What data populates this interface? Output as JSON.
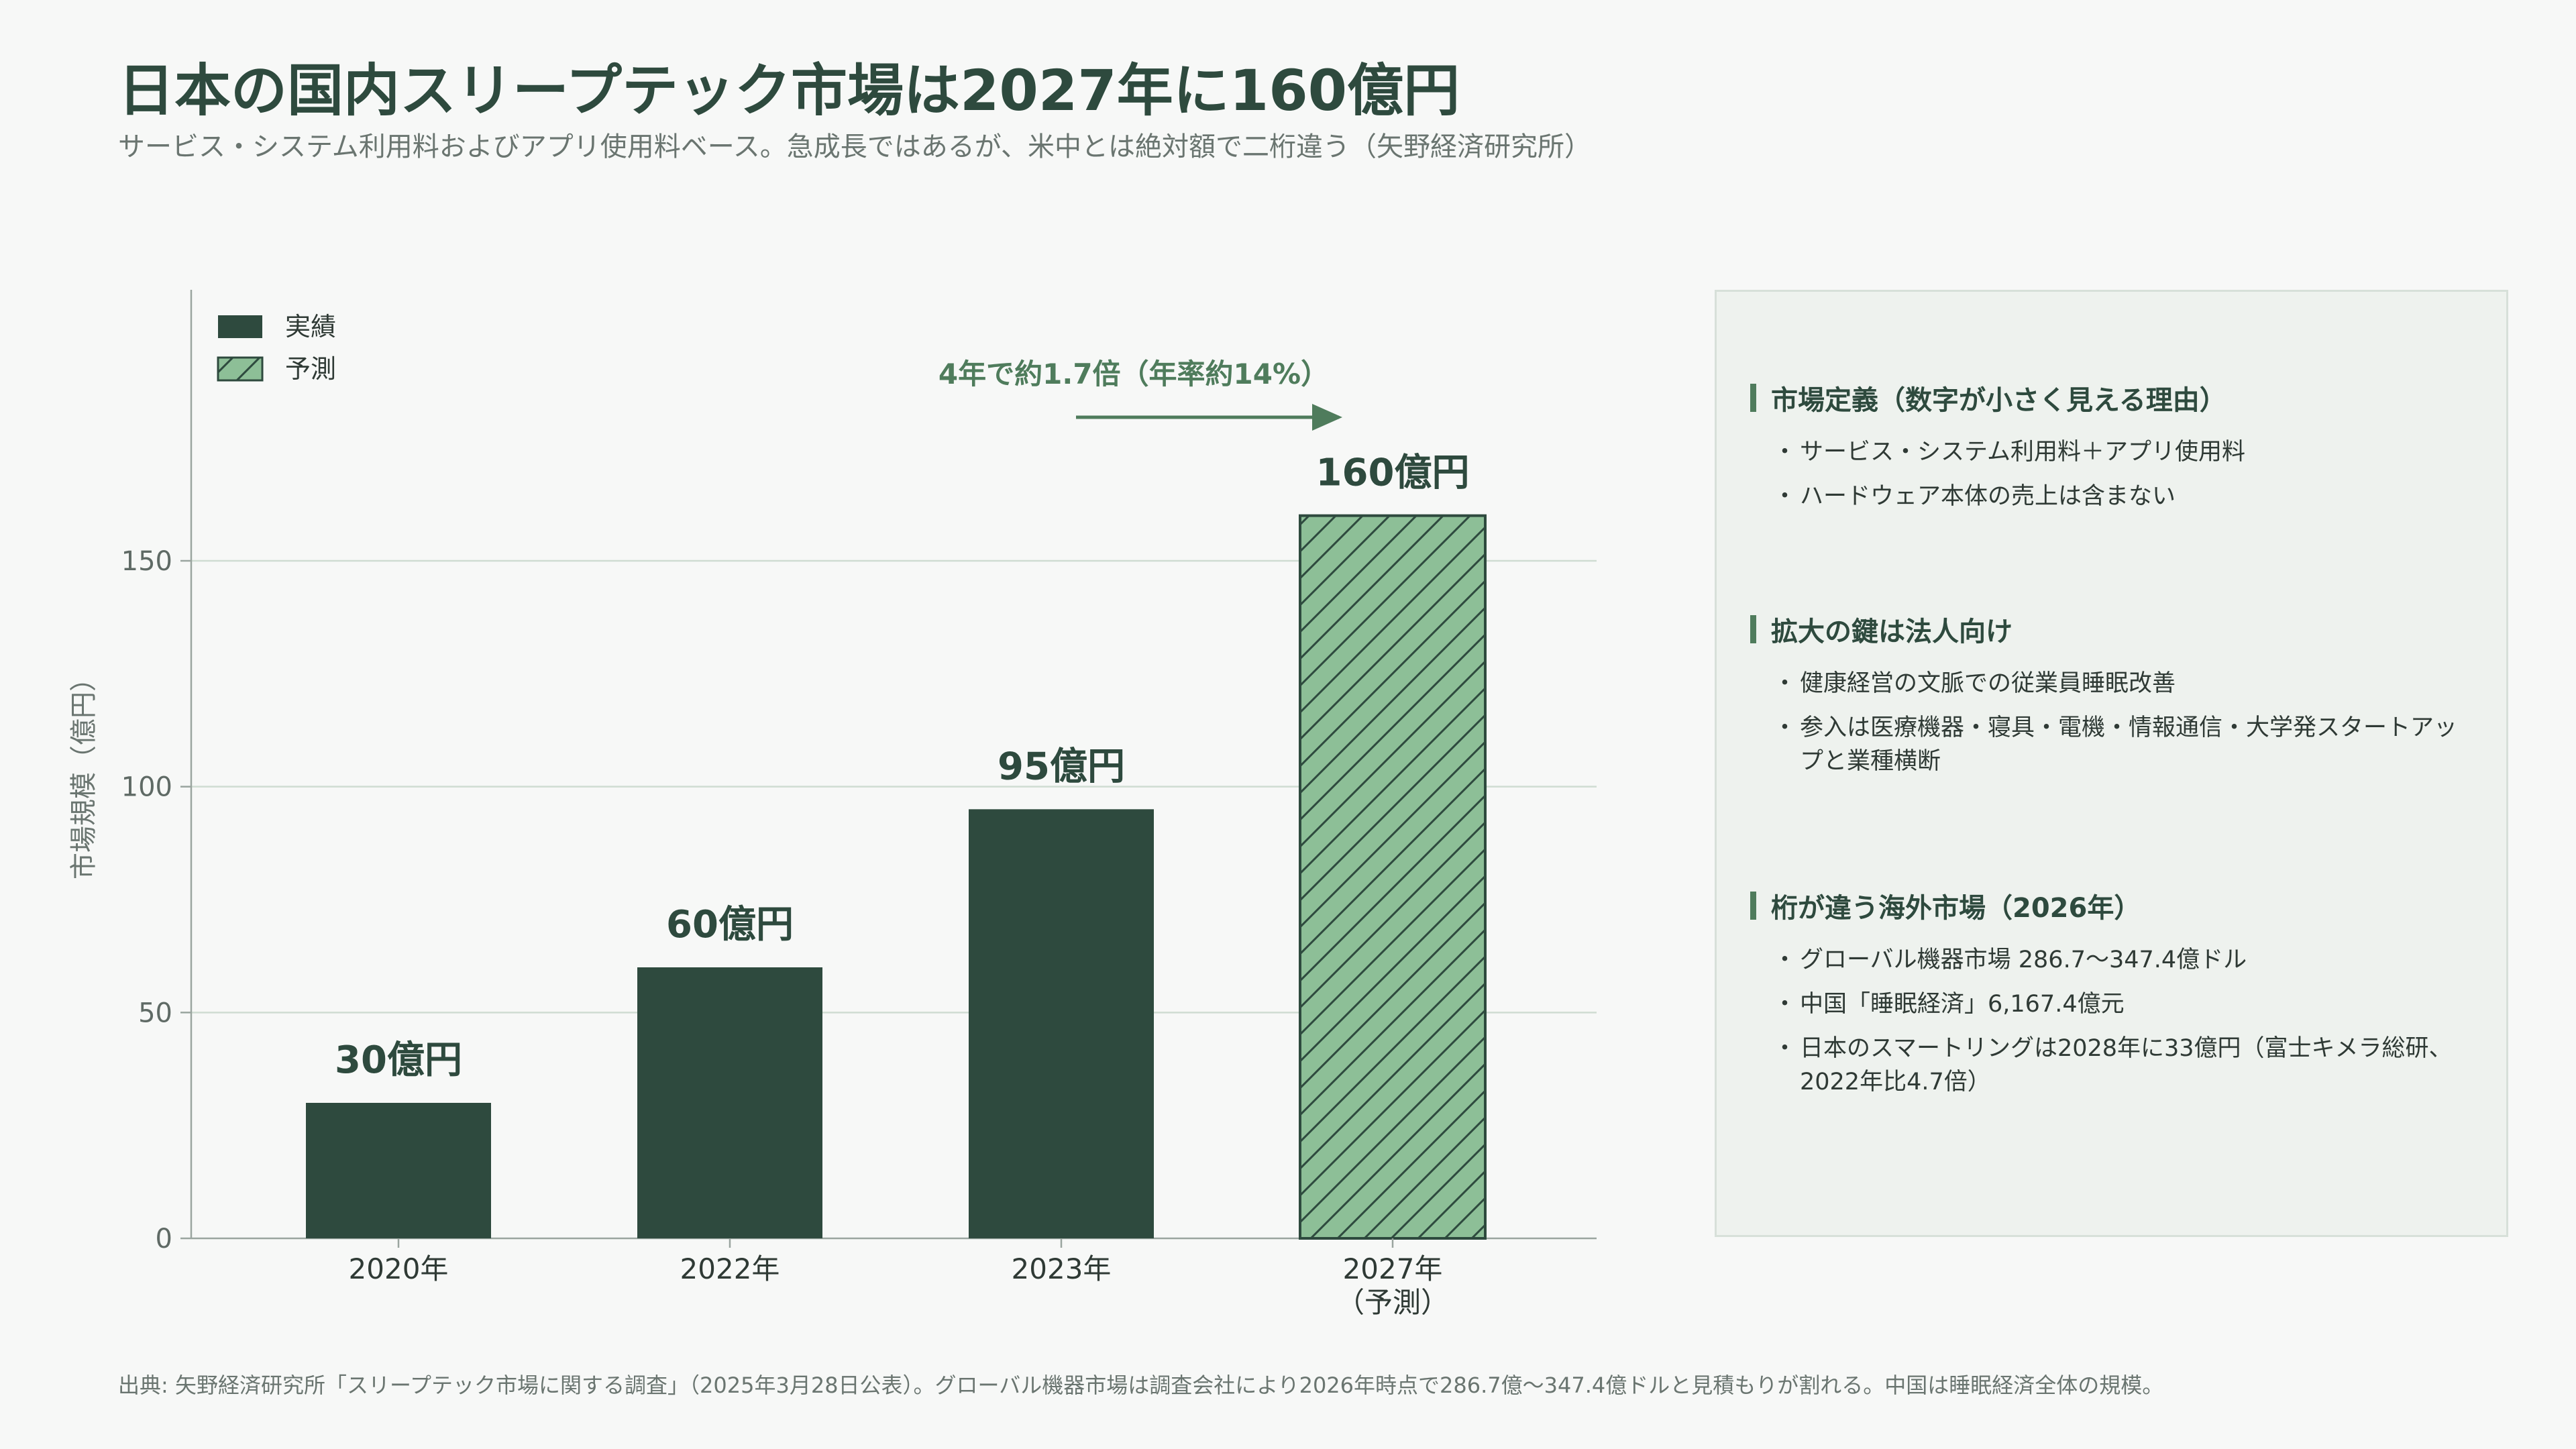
{
  "title": "日本の国内スリープテック市場は2027年に160億円",
  "subtitle": "サービス・システム利用料およびアプリ使用料ベース。急成長ではあるが、米中とは絶対額で二桁違う（矢野経済研究所）",
  "colors": {
    "actual": "#2e4a3e",
    "forecast_fill": "#8dbf97",
    "forecast_hatch": "#2e4a3e",
    "grid": "#cfdcd2",
    "axis": "#9aa59f",
    "accent": "#4f7c5c",
    "panel_bg": "#eef2ee"
  },
  "chart_data": {
    "type": "bar",
    "categories": [
      "2020年",
      "2022年",
      "2023年",
      "2027年"
    ],
    "category_sublabels": [
      "",
      "",
      "",
      "（予測）"
    ],
    "values": [
      30,
      60,
      95,
      160
    ],
    "value_labels": [
      "30億円",
      "60億円",
      "95億円",
      "160億円"
    ],
    "series_kind": [
      "actual",
      "actual",
      "actual",
      "forecast"
    ],
    "legend": [
      {
        "label": "実績",
        "kind": "actual"
      },
      {
        "label": "予測",
        "kind": "forecast"
      }
    ],
    "legend_position": "top-left",
    "ylabel": "市場規模（億円）",
    "ylim": [
      0,
      210
    ],
    "yticks": [
      0,
      50,
      100,
      150
    ],
    "grid": true,
    "annotation": {
      "text": "4年で約1.7倍（年率約14%）",
      "arrow": "right"
    }
  },
  "panel": {
    "sections": [
      {
        "title": "市場定義（数字が小さく見える理由）",
        "items": [
          "サービス・システム利用料＋アプリ使用料",
          "ハードウェア本体の売上は含まない"
        ]
      },
      {
        "title": "拡大の鍵は法人向け",
        "items": [
          "健康経営の文脈での従業員睡眠改善",
          "参入は医療機器・寝具・電機・情報通信・大学発スタートアップと業種横断"
        ]
      },
      {
        "title": "桁が違う海外市場（2026年）",
        "items": [
          "グローバル機器市場 286.7〜347.4億ドル",
          "中国「睡眠経済」6,167.4億元",
          "日本のスマートリングは2028年に33億円（富士キメラ総研、2022年比4.7倍）"
        ]
      }
    ]
  },
  "footnote": "出典: 矢野経済研究所「スリープテック市場に関する調査」（2025年3月28日公表）。グローバル機器市場は調査会社により2026年時点で286.7億〜347.4億ドルと見積もりが割れる。中国は睡眠経済全体の規模。"
}
